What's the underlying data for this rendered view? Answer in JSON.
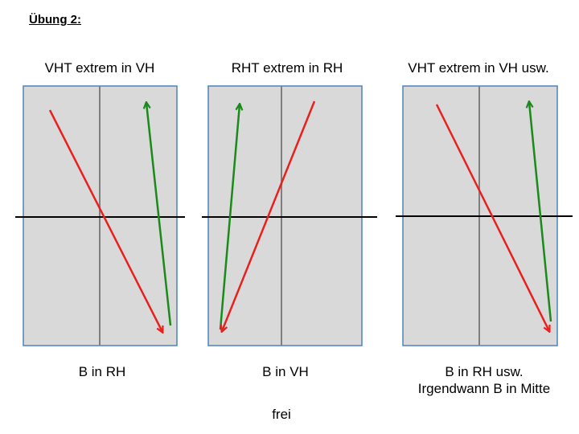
{
  "heading": "Übung 2:",
  "panels": [
    {
      "title": "VHT extrem in VH",
      "caption_lines": [
        "B in RH",
        ""
      ],
      "arrows": [
        {
          "color": "#e8201e",
          "direction": "down"
        },
        {
          "color": "#1a8a1a",
          "direction": "up"
        }
      ]
    },
    {
      "title": "RHT extrem in RH",
      "caption_lines": [
        "B in VH",
        ""
      ],
      "arrows": [
        {
          "color": "#1a8a1a",
          "direction": "up"
        },
        {
          "color": "#e8201e",
          "direction": "down"
        }
      ]
    },
    {
      "title": "VHT extrem in VH usw.",
      "caption_lines": [
        "B in RH usw.",
        "Irgendwann B in Mitte"
      ],
      "arrows": [
        {
          "color": "#e8201e",
          "direction": "down"
        },
        {
          "color": "#1a8a1a",
          "direction": "up"
        }
      ]
    }
  ],
  "footer": "frei",
  "colors": {
    "panel_fill": "#d9d9d9",
    "panel_border": "#4f81bd",
    "center_line": "#7f7f7f",
    "horizontal_line": "#000000",
    "red_arrow": "#e8201e",
    "green_arrow": "#1a8a1a"
  }
}
